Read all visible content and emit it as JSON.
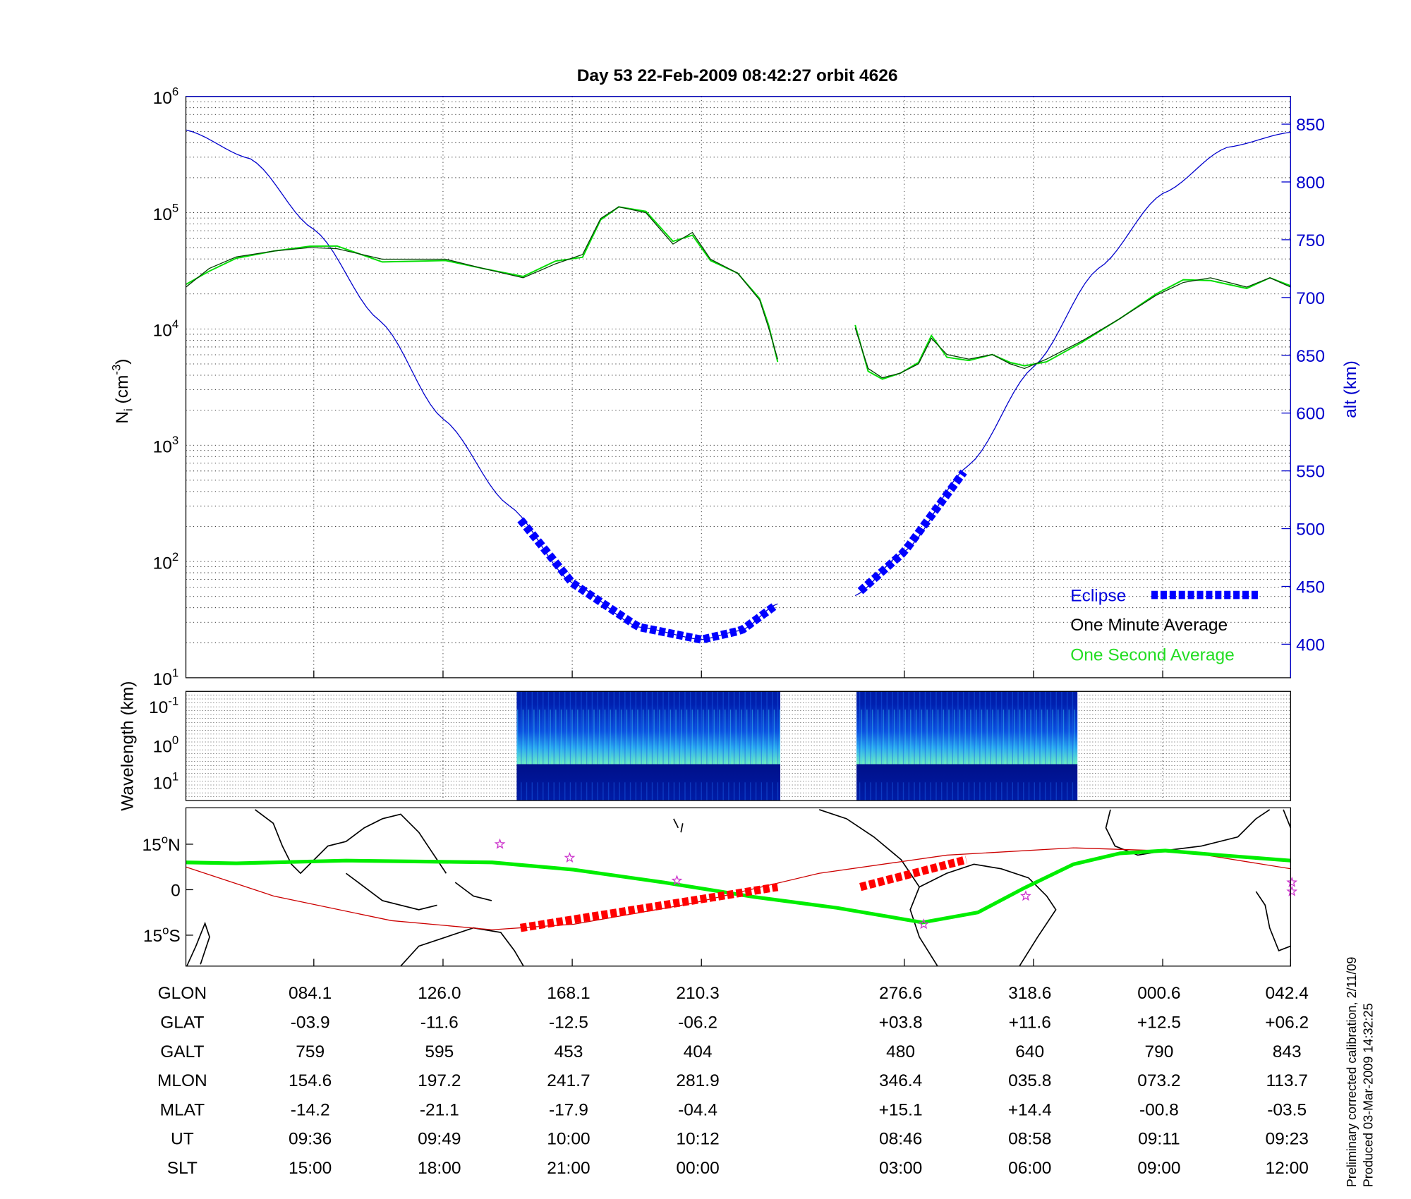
{
  "title": "Day 53  22-Feb-2009 08:42:27   orbit 4626",
  "colors": {
    "alt": "#0000cc",
    "eclipse": "#0000ff",
    "minute": "#000000",
    "second": "#00dd00",
    "track_green": "#00ee00",
    "track_red": "#cc0000",
    "eclipse_red": "#ff0000",
    "star": "#cc33cc"
  },
  "chart_data": [
    {
      "type": "line",
      "name": "ion density and altitude",
      "ylabel": "N",
      "ylabel_sub": "i",
      "ylabel_unit": "(cm",
      "ylabel_exp": "-3",
      "ylabel_close": ")",
      "y_scale": "log",
      "ylim": [
        10,
        1000000
      ],
      "y_ticks": [
        {
          "base": "10",
          "exp": "1"
        },
        {
          "base": "10",
          "exp": "2"
        },
        {
          "base": "10",
          "exp": "3"
        },
        {
          "base": "10",
          "exp": "4"
        },
        {
          "base": "10",
          "exp": "5"
        },
        {
          "base": "10",
          "exp": "6"
        }
      ],
      "y2label": "alt (km)",
      "y2lim": [
        371,
        874
      ],
      "y2_ticks": [
        "400",
        "450",
        "500",
        "550",
        "600",
        "650",
        "700",
        "750",
        "800",
        "850"
      ],
      "xlim": [
        0,
        8.55
      ],
      "x_ticks": [
        0.99,
        1.99,
        2.99,
        3.99,
        5.56,
        6.56,
        7.56,
        8.55
      ],
      "grid": true,
      "legend": {
        "placement": "bottom-right",
        "eclipse": "Eclipse",
        "minute": "One Minute Average",
        "second": "One Second Average"
      },
      "ni_segments": [
        [
          [
            0,
            4.36
          ],
          [
            0.18,
            4.52
          ],
          [
            0.39,
            4.62
          ],
          [
            0.68,
            4.67
          ],
          [
            0.96,
            4.7
          ],
          [
            1.17,
            4.69
          ],
          [
            1.52,
            4.6
          ],
          [
            2.01,
            4.6
          ],
          [
            2.3,
            4.52
          ],
          [
            2.61,
            4.44
          ],
          [
            2.86,
            4.56
          ],
          [
            3.07,
            4.64
          ],
          [
            3.21,
            4.95
          ],
          [
            3.35,
            5.05
          ],
          [
            3.56,
            5.0
          ],
          [
            3.77,
            4.73
          ],
          [
            3.92,
            4.83
          ],
          [
            4.06,
            4.6
          ],
          [
            4.27,
            4.48
          ],
          [
            4.44,
            4.25
          ],
          [
            4.51,
            4.01
          ],
          [
            4.58,
            3.74
          ]
        ],
        [
          [
            5.18,
            4.01
          ],
          [
            5.28,
            3.66
          ],
          [
            5.39,
            3.58
          ],
          [
            5.53,
            3.62
          ],
          [
            5.67,
            3.7
          ],
          [
            5.77,
            3.92
          ],
          [
            5.89,
            3.78
          ],
          [
            6.06,
            3.74
          ],
          [
            6.24,
            3.78
          ],
          [
            6.38,
            3.7
          ],
          [
            6.49,
            3.66
          ],
          [
            6.66,
            3.74
          ],
          [
            6.94,
            3.9
          ],
          [
            7.23,
            4.09
          ],
          [
            7.51,
            4.29
          ],
          [
            7.72,
            4.4
          ],
          [
            7.93,
            4.44
          ],
          [
            8.21,
            4.36
          ],
          [
            8.39,
            4.44
          ],
          [
            8.55,
            4.36
          ]
        ]
      ],
      "alt_segments": [
        [
          [
            0,
            845
          ],
          [
            0.5,
            820
          ],
          [
            0.99,
            759
          ],
          [
            1.5,
            680
          ],
          [
            1.99,
            595
          ],
          [
            2.5,
            520
          ],
          [
            2.99,
            453
          ],
          [
            3.5,
            415
          ],
          [
            3.99,
            404
          ],
          [
            4.3,
            412
          ],
          [
            4.58,
            435
          ]
        ],
        [
          [
            5.18,
            442
          ],
          [
            5.56,
            480
          ],
          [
            6.06,
            555
          ],
          [
            6.56,
            640
          ],
          [
            7.06,
            725
          ],
          [
            7.56,
            790
          ],
          [
            8.06,
            830
          ],
          [
            8.55,
            843
          ]
        ]
      ],
      "eclipse_ranges": [
        [
          2.59,
          4.58
        ],
        [
          5.22,
          6.04
        ]
      ]
    },
    {
      "type": "heatmap",
      "name": "spectrogram",
      "ylabel": "Wavelength (km)",
      "y_ticks": [
        {
          "base": "10",
          "exp": "-1"
        },
        {
          "base": "10",
          "exp": "0"
        },
        {
          "base": "10",
          "exp": "1"
        }
      ],
      "data_ranges": [
        [
          2.56,
          4.6
        ],
        [
          5.19,
          6.9
        ]
      ]
    },
    {
      "type": "line",
      "name": "orbit track map",
      "y_ticks": [
        {
          "deg": "15",
          "hemi": "N"
        },
        {
          "deg": "",
          "hemi": "0"
        },
        {
          "deg": "15",
          "hemi": "S"
        }
      ],
      "ylim": [
        -27,
        27
      ],
      "green_track": [
        [
          0,
          9
        ],
        [
          0.39,
          8.7
        ],
        [
          1.24,
          9.6
        ],
        [
          2.37,
          9
        ],
        [
          3.0,
          6.6
        ],
        [
          3.7,
          2.4
        ],
        [
          4.4,
          -2.4
        ],
        [
          5.04,
          -6
        ],
        [
          5.7,
          -10.8
        ],
        [
          6.13,
          -7.5
        ],
        [
          6.49,
          0.6
        ],
        [
          6.87,
          8.4
        ],
        [
          7.23,
          12
        ],
        [
          7.58,
          12.9
        ],
        [
          8.0,
          11.4
        ],
        [
          8.55,
          9.6
        ]
      ],
      "red_track": [
        [
          0,
          7.5
        ],
        [
          0.68,
          -2.1
        ],
        [
          1.59,
          -10.2
        ],
        [
          2.37,
          -13.2
        ],
        [
          3.0,
          -11.4
        ],
        [
          3.92,
          -4.5
        ],
        [
          4.9,
          5.4
        ],
        [
          5.89,
          11.4
        ],
        [
          6.87,
          13.8
        ],
        [
          7.72,
          12.6
        ],
        [
          8.55,
          6.9
        ]
      ],
      "red_eclipse": [
        [
          [
            2.59,
            -12.6
          ],
          [
            4.58,
            0.9
          ]
        ],
        [
          [
            5.22,
            0.9
          ],
          [
            6.04,
            9.9
          ]
        ]
      ],
      "stars": [
        [
          2.43,
          15
        ],
        [
          2.97,
          10.5
        ],
        [
          3.8,
          3
        ],
        [
          6.5,
          -2.1
        ],
        [
          8.56,
          2.4
        ],
        [
          8.56,
          -0.6
        ],
        [
          5.71,
          -11.4
        ]
      ]
    }
  ],
  "table": {
    "row_labels": [
      "GLON",
      "GLAT",
      "GALT",
      "MLON",
      "MLAT",
      "UT",
      "SLT"
    ],
    "columns": [
      [
        "084.1",
        "-03.9",
        "759",
        "154.6",
        "-14.2",
        "09:36",
        "15:00"
      ],
      [
        "126.0",
        "-11.6",
        "595",
        "197.2",
        "-21.1",
        "09:49",
        "18:00"
      ],
      [
        "168.1",
        "-12.5",
        "453",
        "241.7",
        "-17.9",
        "10:00",
        "21:00"
      ],
      [
        "210.3",
        "-06.2",
        "404",
        "281.9",
        "-04.4",
        "10:12",
        "00:00"
      ],
      [
        "276.6",
        "+03.8",
        "480",
        "346.4",
        "+15.1",
        "08:46",
        "03:00"
      ],
      [
        "318.6",
        "+11.6",
        "640",
        "035.8",
        "+14.4",
        "08:58",
        "06:00"
      ],
      [
        "000.6",
        "+12.5",
        "790",
        "073.2",
        "-00.8",
        "09:11",
        "09:00"
      ],
      [
        "042.4",
        "+06.2",
        "843",
        "113.7",
        "-03.5",
        "09:23",
        "12:00"
      ]
    ]
  },
  "footer": {
    "line1": "Preliminary corrected calibration, 2/11/09",
    "line2": "Produced 03-Mar-2009 14:32:25"
  }
}
